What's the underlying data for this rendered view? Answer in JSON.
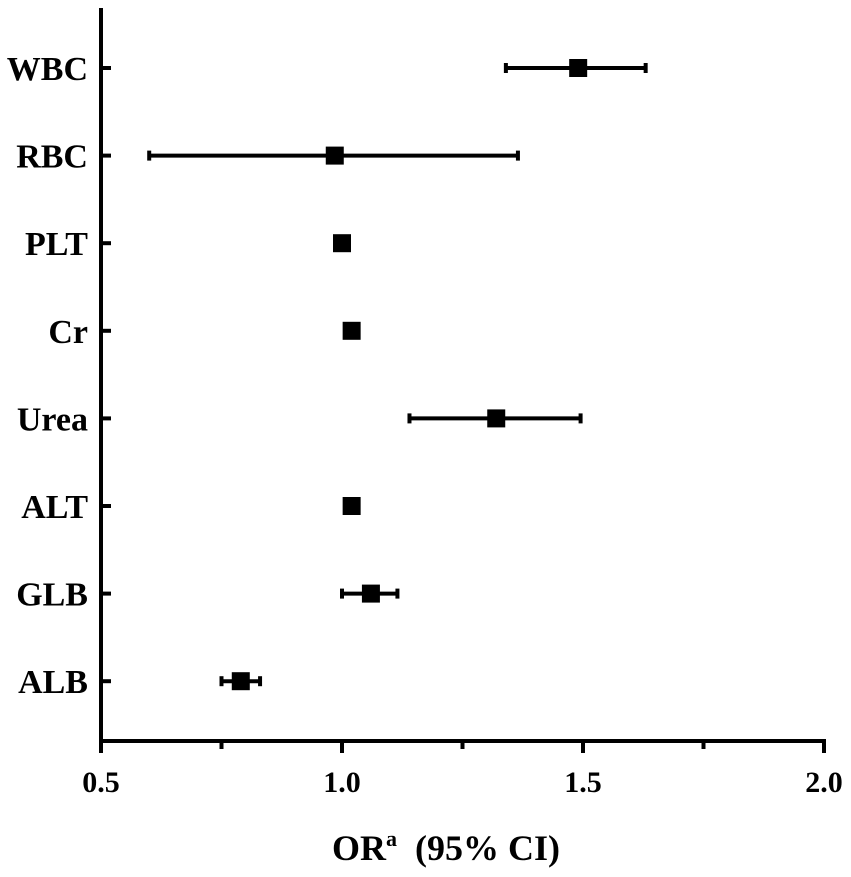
{
  "chart_data": {
    "type": "forest",
    "categories": [
      "WBC",
      "RBC",
      "PLT",
      "Cr",
      "Urea",
      "ALT",
      "GLB",
      "ALB"
    ],
    "estimates": [
      1.49,
      0.985,
      1.0,
      1.02,
      1.32,
      1.02,
      1.06,
      0.79
    ],
    "ci_lower": [
      1.34,
      0.6,
      1.0,
      1.02,
      1.14,
      1.02,
      1.0,
      0.75
    ],
    "ci_upper": [
      1.63,
      1.365,
      1.0,
      1.02,
      1.495,
      1.02,
      1.115,
      0.83
    ],
    "xlim": [
      0.5,
      2.0
    ],
    "xticks": [
      "0.5",
      "1.0",
      "1.5",
      "2.0"
    ],
    "xtick_values": [
      0.5,
      1.0,
      1.5,
      2.0
    ],
    "xminor_values": [
      0.75,
      1.25,
      1.75
    ],
    "xlabel": "OR",
    "xlabel_superscript": "a",
    "xlabel_suffix": "(95% CI)",
    "grid": false,
    "legend": "none",
    "color": "#000000"
  }
}
